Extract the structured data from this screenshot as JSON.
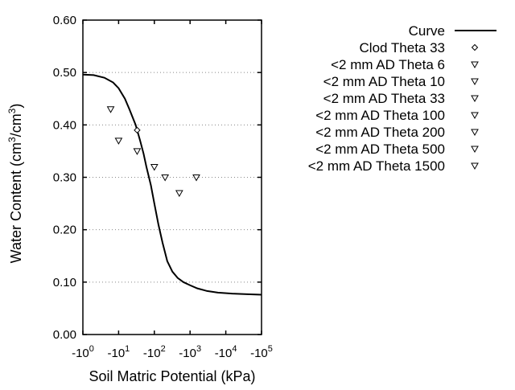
{
  "chart_data": {
    "type": "scatter",
    "xlabel": "Soil Matric Potential (kPa)",
    "ylabel": "Water Content (cm³/cm³)",
    "x_scale": "log",
    "xlim": [
      1,
      100000
    ],
    "ylim": [
      0,
      0.6
    ],
    "grid": "horizontal dotted",
    "legend": "right",
    "x_ticks": [
      {
        "value": 1,
        "base": "-10",
        "exp": "0"
      },
      {
        "value": 10,
        "base": "-10",
        "exp": "1"
      },
      {
        "value": 100,
        "base": "-10",
        "exp": "2"
      },
      {
        "value": 1000,
        "base": "-10",
        "exp": "3"
      },
      {
        "value": 10000,
        "base": "-10",
        "exp": "4"
      },
      {
        "value": 100000,
        "base": "-10",
        "exp": "5"
      }
    ],
    "y_ticks": [
      {
        "value": 0,
        "label": "0.00"
      },
      {
        "value": 0.1,
        "label": "0.10"
      },
      {
        "value": 0.2,
        "label": "0.20"
      },
      {
        "value": 0.3,
        "label": "0.30"
      },
      {
        "value": 0.4,
        "label": "0.40"
      },
      {
        "value": 0.5,
        "label": "0.50"
      },
      {
        "value": 0.6,
        "label": "0.60"
      }
    ],
    "series": [
      {
        "name": "Curve",
        "kind": "line",
        "color": "#000000",
        "x": [
          1,
          2,
          4,
          7,
          10,
          15,
          20,
          30,
          40,
          50,
          60,
          80,
          100,
          130,
          170,
          230,
          320,
          450,
          650,
          1000,
          1600,
          3000,
          6000,
          15000,
          40000,
          100000
        ],
        "y": [
          0.496,
          0.495,
          0.49,
          0.481,
          0.47,
          0.45,
          0.43,
          0.4,
          0.37,
          0.345,
          0.32,
          0.285,
          0.25,
          0.21,
          0.175,
          0.14,
          0.12,
          0.108,
          0.1,
          0.094,
          0.088,
          0.083,
          0.08,
          0.078,
          0.077,
          0.076
        ]
      },
      {
        "name": "Clod Theta 33",
        "kind": "marker",
        "marker": "diamond",
        "x": [
          33
        ],
        "y": [
          0.39
        ]
      },
      {
        "name": "<2 mm AD Theta 6",
        "kind": "marker",
        "marker": "triangle-down",
        "x": [
          6
        ],
        "y": [
          0.43
        ]
      },
      {
        "name": "<2 mm AD Theta 10",
        "kind": "marker",
        "marker": "triangle-down",
        "x": [
          10
        ],
        "y": [
          0.37
        ]
      },
      {
        "name": "<2 mm AD Theta 33",
        "kind": "marker",
        "marker": "triangle-down",
        "x": [
          33
        ],
        "y": [
          0.35
        ]
      },
      {
        "name": "<2 mm AD Theta 100",
        "kind": "marker",
        "marker": "triangle-down",
        "x": [
          100
        ],
        "y": [
          0.32
        ]
      },
      {
        "name": "<2 mm AD Theta 200",
        "kind": "marker",
        "marker": "triangle-down",
        "x": [
          200
        ],
        "y": [
          0.3
        ]
      },
      {
        "name": "<2 mm AD Theta 500",
        "kind": "marker",
        "marker": "triangle-down",
        "x": [
          500
        ],
        "y": [
          0.27
        ]
      },
      {
        "name": "<2 mm AD Theta 1500",
        "kind": "marker",
        "marker": "triangle-down",
        "x": [
          1500
        ],
        "y": [
          0.3
        ]
      }
    ]
  }
}
